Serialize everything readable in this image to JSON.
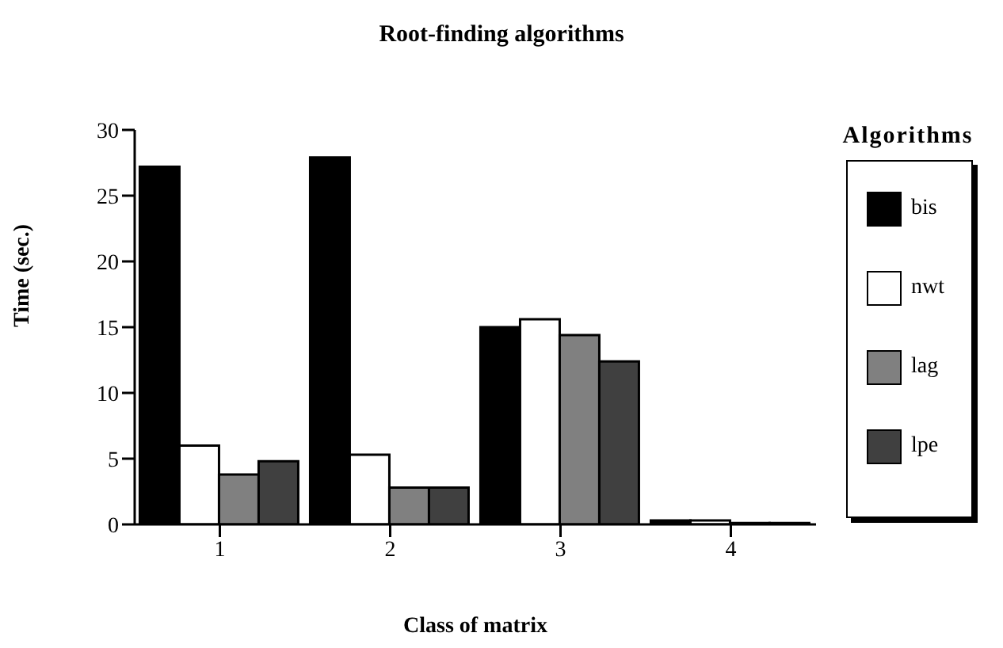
{
  "chart_data": {
    "type": "bar",
    "title": "Root-finding algorithms",
    "xlabel": "Class of matrix",
    "ylabel": "Time   (sec.)",
    "legend_title": "Algorithms",
    "categories": [
      "1",
      "2",
      "3",
      "4"
    ],
    "series": [
      {
        "name": "bis",
        "color": "#000000",
        "values": [
          27.2,
          27.9,
          15.0,
          0.3
        ]
      },
      {
        "name": "nwt",
        "color": "#ffffff",
        "values": [
          6.0,
          5.3,
          15.6,
          0.3
        ]
      },
      {
        "name": "lag",
        "color": "#808080",
        "values": [
          3.8,
          2.8,
          14.4,
          0.1
        ]
      },
      {
        "name": "lpe",
        "color": "#404040",
        "values": [
          4.8,
          2.8,
          12.4,
          0.1
        ]
      }
    ],
    "ylim": [
      0,
      30
    ],
    "yticks": [
      0,
      5,
      10,
      15,
      20,
      25,
      30
    ],
    "grid": false,
    "legend": "right"
  }
}
